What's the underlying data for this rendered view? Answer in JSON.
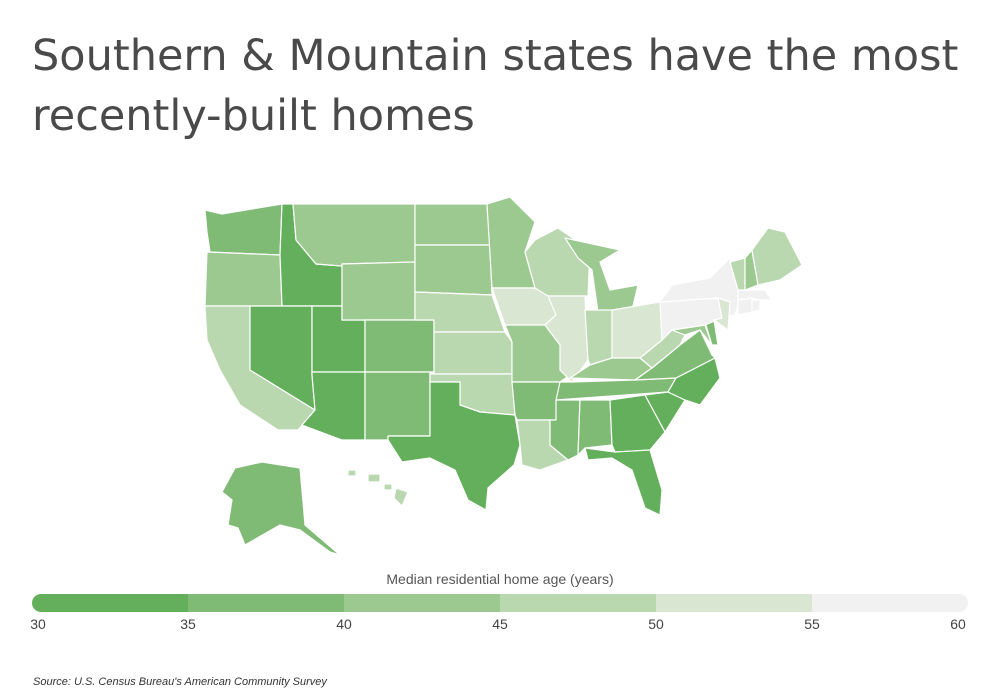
{
  "title": "Southern & Mountain states have the most recently-built homes",
  "legend": {
    "title": "Median residential home age (years)",
    "bins": [
      {
        "from": 30,
        "to": 35,
        "color": "#63af5b"
      },
      {
        "from": 35,
        "to": 40,
        "color": "#80bb76"
      },
      {
        "from": 40,
        "to": 45,
        "color": "#9cc990"
      },
      {
        "from": 45,
        "to": 50,
        "color": "#bad8b0"
      },
      {
        "from": 50,
        "to": 55,
        "color": "#d8e6d2"
      },
      {
        "from": 55,
        "to": 60,
        "color": "#f1f1f1"
      }
    ],
    "ticks": [
      "30",
      "35",
      "40",
      "45",
      "50",
      "55",
      "60"
    ]
  },
  "map_data": {
    "type": "choropleth",
    "region": "United States",
    "state_bins": {
      "WA": 1,
      "OR": 2,
      "CA": 3,
      "ID": 0,
      "NV": 0,
      "UT": 0,
      "AZ": 0,
      "MT": 2,
      "WY": 2,
      "CO": 1,
      "NM": 1,
      "ND": 2,
      "SD": 2,
      "NE": 3,
      "KS": 3,
      "OK": 3,
      "TX": 0,
      "MN": 2,
      "IA": 4,
      "MO": 2,
      "AR": 1,
      "LA": 3,
      "WI": 3,
      "IL": 4,
      "MI": 2,
      "IN": 3,
      "OH": 4,
      "KY": 2,
      "TN": 1,
      "MS": 1,
      "AL": 1,
      "GA": 0,
      "FL": 0,
      "SC": 0,
      "NC": 0,
      "VA": 1,
      "WV": 3,
      "MD": 2,
      "DE": 1,
      "PA": 5,
      "NY": 5,
      "NJ": 4,
      "CT": 5,
      "RI": 5,
      "MA": 5,
      "VT": 3,
      "NH": 2,
      "ME": 3,
      "AK": 1,
      "HI": 3
    }
  },
  "source": "Source:  U.S. Census Bureau's American Community Survey"
}
